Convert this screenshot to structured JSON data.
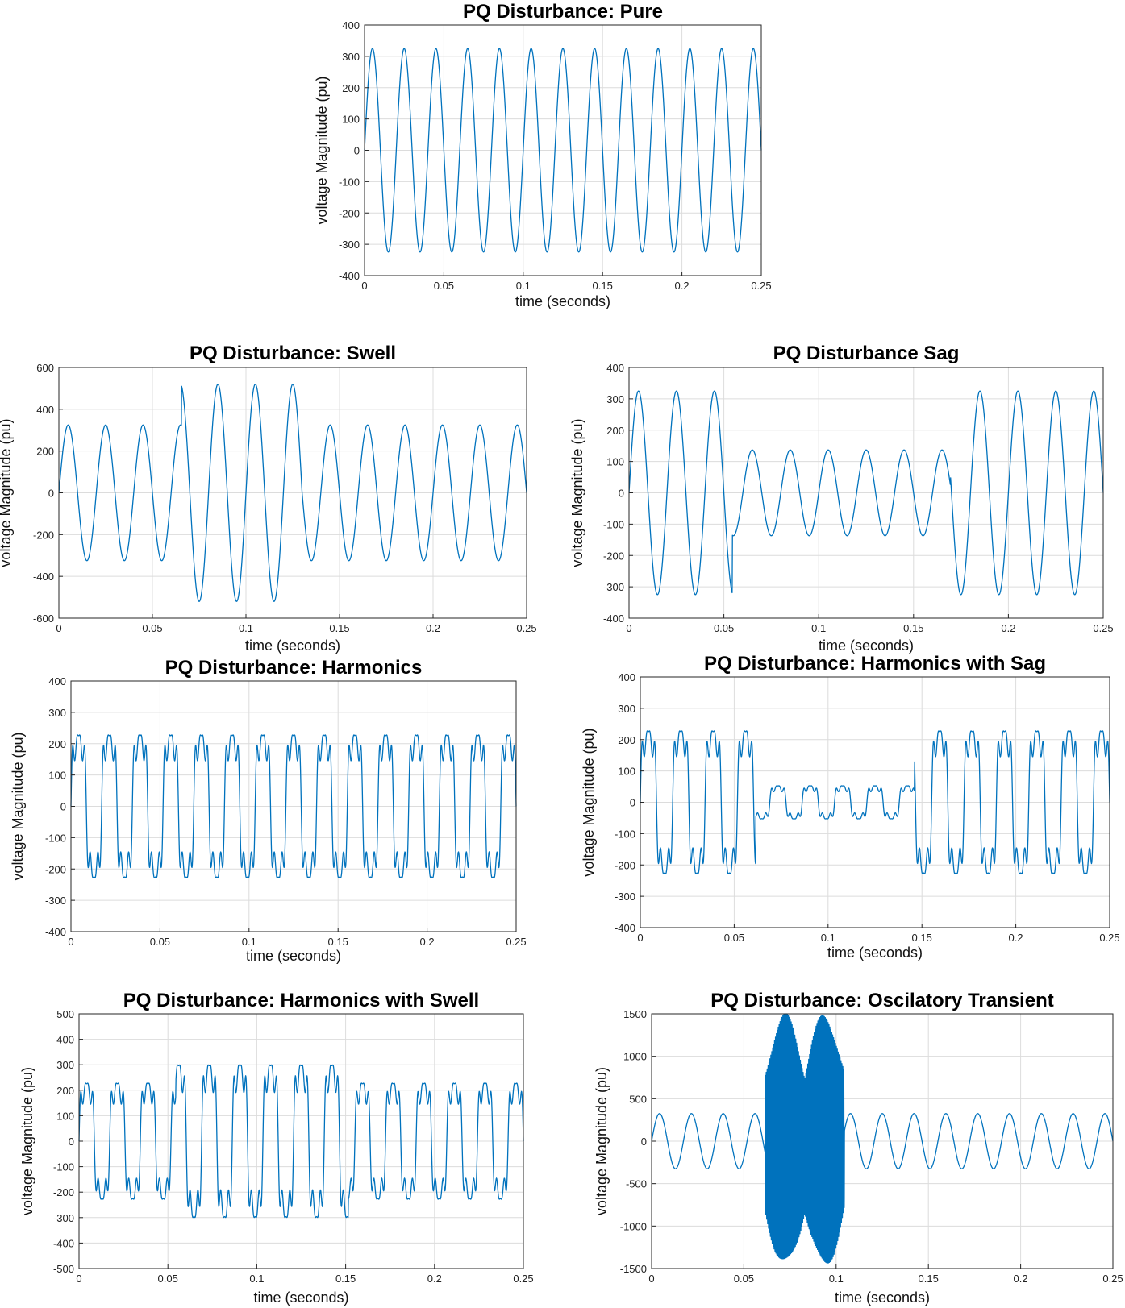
{
  "colors": {
    "series": "#0072BD",
    "axis": "#262626",
    "grid": "#dcdcdc"
  },
  "chart_data": [
    {
      "type": "line",
      "title": "PQ Disturbance: Pure",
      "xlabel": "time (seconds)",
      "ylabel": "voltage Magnitude (pu)",
      "xlim": [
        0,
        0.25
      ],
      "ylim": [
        -400,
        400
      ],
      "xticks": [
        0,
        0.05,
        0.1,
        0.15,
        0.2,
        0.25
      ],
      "xtick_labels": [
        "0",
        "0.05",
        "0.1",
        "0.15",
        "0.2",
        "0.25"
      ],
      "yticks": [
        -400,
        -300,
        -200,
        -100,
        0,
        100,
        200,
        300,
        400
      ],
      "ytick_labels": [
        "-400",
        "-300",
        "-200",
        "-100",
        "0",
        "100",
        "200",
        "300",
        "400"
      ],
      "grid": true,
      "series": [
        {
          "function": "sine",
          "frequency_hz": 50,
          "amplitude": 325,
          "x": [
            0,
            0.005,
            0.015,
            0.025,
            0.035,
            0.045,
            0.055,
            0.065,
            0.075,
            0.085,
            0.095,
            0.105,
            0.115,
            0.125,
            0.135,
            0.145,
            0.155,
            0.165,
            0.175,
            0.185,
            0.195,
            0.205,
            0.215,
            0.225,
            0.235,
            0.245,
            0.25
          ],
          "y": [
            0,
            325,
            -325,
            325,
            -325,
            325,
            -325,
            325,
            -325,
            325,
            -325,
            325,
            -325,
            325,
            -325,
            325,
            -325,
            325,
            -325,
            325,
            -325,
            325,
            -325,
            325,
            -325,
            325,
            0
          ]
        }
      ]
    },
    {
      "type": "line",
      "title": "PQ Disturbance: Swell",
      "xlabel": "time (seconds)",
      "ylabel": "voltage Magnitude (pu)",
      "xlim": [
        0,
        0.25
      ],
      "ylim": [
        -600,
        600
      ],
      "xticks": [
        0,
        0.05,
        0.1,
        0.15,
        0.2,
        0.25
      ],
      "xtick_labels": [
        "0",
        "0.05",
        "0.1",
        "0.15",
        "0.2",
        "0.25"
      ],
      "yticks": [
        -600,
        -400,
        -200,
        0,
        200,
        400,
        600
      ],
      "ytick_labels": [
        "-600",
        "-400",
        "-200",
        "0",
        "200",
        "400",
        "600"
      ],
      "grid": true,
      "series": [
        {
          "function": "sine",
          "frequency_hz": 50,
          "amplitude": 325,
          "events": [
            {
              "kind": "gain",
              "start": 0.0655,
              "end": 0.13,
              "peak": 520
            }
          ]
        }
      ]
    },
    {
      "type": "line",
      "title": "PQ Disturbance Sag",
      "xlabel": "time (seconds)",
      "ylabel": "voltage Magnitude (pu)",
      "xlim": [
        0,
        0.25
      ],
      "ylim": [
        -400,
        400
      ],
      "xticks": [
        0,
        0.05,
        0.1,
        0.15,
        0.2,
        0.25
      ],
      "xtick_labels": [
        "0",
        "0.05",
        "0.1",
        "0.15",
        "0.2",
        "0.25"
      ],
      "yticks": [
        -400,
        -300,
        -200,
        -100,
        0,
        100,
        200,
        300,
        400
      ],
      "ytick_labels": [
        "-400",
        "-300",
        "-200",
        "-100",
        "0",
        "100",
        "200",
        "300",
        "400"
      ],
      "grid": true,
      "series": [
        {
          "function": "sine",
          "frequency_hz": 50,
          "amplitude": 325,
          "events": [
            {
              "kind": "gain",
              "start": 0.0545,
              "end": 0.1695,
              "peak": 137
            }
          ]
        }
      ]
    },
    {
      "type": "line",
      "title": "PQ Disturbance: Harmonics",
      "xlabel": "time (seconds)",
      "ylabel": "voltage Magnitude (pu)",
      "xlim": [
        0,
        0.25
      ],
      "ylim": [
        -400,
        400
      ],
      "xticks": [
        0,
        0.05,
        0.1,
        0.15,
        0.2,
        0.25
      ],
      "xtick_labels": [
        "0",
        "0.05",
        "0.1",
        "0.15",
        "0.2",
        "0.25"
      ],
      "yticks": [
        -400,
        -300,
        -200,
        -100,
        0,
        100,
        200,
        300,
        400
      ],
      "ytick_labels": [
        "-400",
        "-300",
        "-200",
        "-100",
        "0",
        "100",
        "200",
        "300",
        "400"
      ],
      "grid": true,
      "series": [
        {
          "function": "harmonic",
          "frequency_hz": 58,
          "amplitude": 245,
          "h3": 0.18,
          "h5": 0.22,
          "h7": 0.12
        }
      ]
    },
    {
      "type": "line",
      "title": "PQ Disturbance: Harmonics with Sag",
      "xlabel": "time (seconds)",
      "ylabel": "voltage Magnitude (pu)",
      "xlim": [
        0,
        0.25
      ],
      "ylim": [
        -400,
        400
      ],
      "xticks": [
        0,
        0.05,
        0.1,
        0.15,
        0.2,
        0.25
      ],
      "xtick_labels": [
        "0",
        "0.05",
        "0.1",
        "0.15",
        "0.2",
        "0.25"
      ],
      "yticks": [
        -400,
        -300,
        -200,
        -100,
        0,
        100,
        200,
        300,
        400
      ],
      "ytick_labels": [
        "-400",
        "-300",
        "-200",
        "-100",
        "0",
        "100",
        "200",
        "300",
        "400"
      ],
      "grid": true,
      "series": [
        {
          "function": "harmonic",
          "frequency_hz": 58,
          "amplitude": 245,
          "h3": 0.18,
          "h5": 0.22,
          "h7": 0.12,
          "events": [
            {
              "kind": "gain",
              "start": 0.0615,
              "end": 0.146,
              "peak": 75
            }
          ]
        }
      ]
    },
    {
      "type": "line",
      "title": "PQ Disturbance: Harmonics with Swell",
      "xlabel": "time (seconds)",
      "ylabel": "voltage Magnitude (pu)",
      "xlim": [
        0,
        0.25
      ],
      "ylim": [
        -500,
        500
      ],
      "xticks": [
        0,
        0.05,
        0.1,
        0.15,
        0.2,
        0.25
      ],
      "xtick_labels": [
        "0",
        "0.05",
        "0.1",
        "0.15",
        "0.2",
        "0.25"
      ],
      "yticks": [
        -500,
        -400,
        -300,
        -200,
        -100,
        0,
        100,
        200,
        300,
        400,
        500
      ],
      "ytick_labels": [
        "-500",
        "-400",
        "-300",
        "-200",
        "-100",
        "0",
        "100",
        "200",
        "300",
        "400",
        "500"
      ],
      "grid": true,
      "series": [
        {
          "function": "harmonic",
          "frequency_hz": 58,
          "amplitude": 245,
          "h3": 0.18,
          "h5": 0.22,
          "h7": 0.12,
          "events": [
            {
              "kind": "gain",
              "start": 0.0545,
              "end": 0.1515,
              "peak": 425
            }
          ]
        }
      ]
    },
    {
      "type": "line",
      "title": "PQ Disturbance: Oscilatory Transient",
      "xlabel": "time (seconds)",
      "ylabel": "voltage Magnitude (pu)",
      "xlim": [
        0,
        0.25
      ],
      "ylim": [
        -1500,
        1500
      ],
      "xticks": [
        0,
        0.05,
        0.1,
        0.15,
        0.2,
        0.25
      ],
      "xtick_labels": [
        "0",
        "0.05",
        "0.1",
        "0.15",
        "0.2",
        "0.25"
      ],
      "yticks": [
        -1500,
        -1000,
        -500,
        0,
        500,
        1000,
        1500
      ],
      "ytick_labels": [
        "-1500",
        "-1000",
        "-500",
        "0",
        "500",
        "1000",
        "1500"
      ],
      "grid": true,
      "series": [
        {
          "function": "sine",
          "frequency_hz": 58,
          "amplitude": 325,
          "events": [
            {
              "kind": "oscillation",
              "start": 0.0615,
              "end": 0.1045,
              "peak": 1440,
              "osc_hz": 2000
            }
          ]
        }
      ]
    }
  ]
}
